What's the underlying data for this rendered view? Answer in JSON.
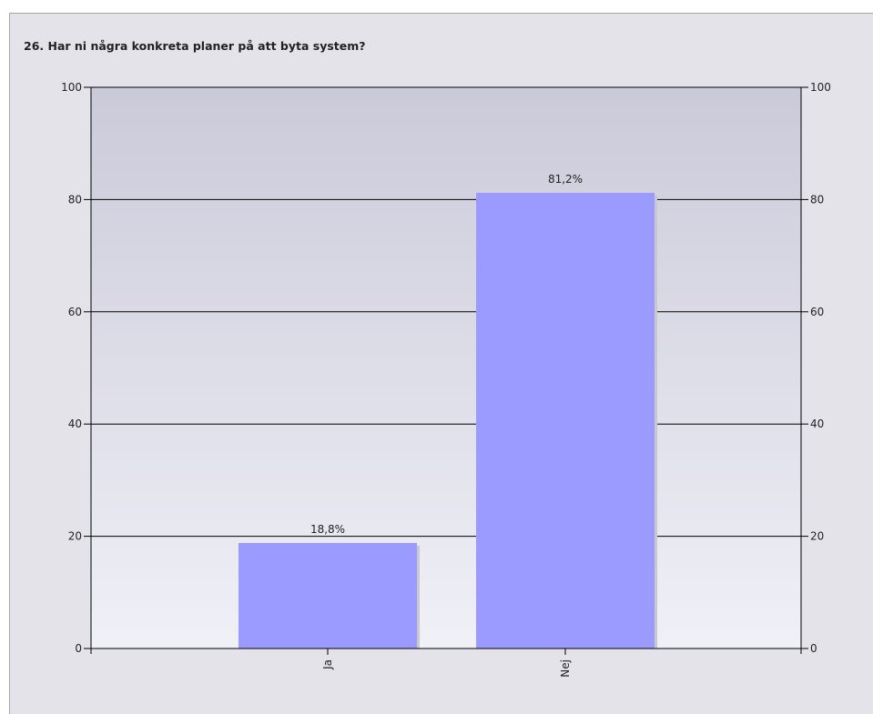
{
  "chart_data": {
    "type": "bar",
    "title": "26. Har ni några konkreta planer på att byta system?",
    "categories": [
      "Ja",
      "Nej"
    ],
    "values": [
      18.8,
      81.2
    ],
    "data_labels": [
      "18,8%",
      "81,2%"
    ],
    "ylim": [
      0,
      100
    ],
    "yticks": [
      0,
      20,
      40,
      60,
      80,
      100
    ],
    "grid": true,
    "secondary_y_axis": true,
    "colors": {
      "bar": "#9b9bff",
      "bar_shadow": "#c8c8cf",
      "plot_top": "#cbcad9",
      "plot_bottom": "#f0f0f7",
      "panel": "#e4e3ea",
      "axis": "#000000"
    }
  }
}
